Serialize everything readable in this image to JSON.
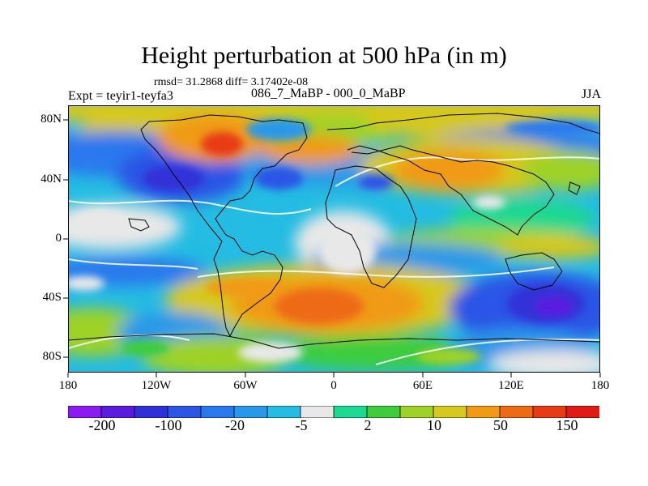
{
  "title": "Height perturbation at 500 hPa (in m)",
  "subtitle_stats": "rmsd= 31.2868 diff= 3.17402e-08",
  "left_label": "Expt = teyir1-teyfa3",
  "center_label": "086_7_MaBP - 000_0_MaBP",
  "right_label": "JJA",
  "map": {
    "variable": "Height perturbation at 500 hPa",
    "units": "m",
    "x_ticks": [
      "180",
      "120W",
      "60W",
      "0",
      "60E",
      "120E",
      "180"
    ],
    "y_ticks": [
      "80N",
      "40N",
      "0",
      "40S",
      "80S"
    ],
    "lon_range": [
      -180,
      180
    ],
    "lat_range": [
      -90,
      90
    ]
  },
  "colorbar": {
    "colors": [
      "#8a1cf0",
      "#5a1ae0",
      "#3030d8",
      "#2c55e6",
      "#2a78ee",
      "#2a98e8",
      "#24bce2",
      "#e8e8e8",
      "#1cd890",
      "#3ccc3c",
      "#9ed228",
      "#d6c81e",
      "#f09a16",
      "#ee6a14",
      "#e83a14",
      "#e01a14"
    ],
    "labels": [
      "-200",
      "-100",
      "-20",
      "-5",
      "2",
      "10",
      "50",
      "150"
    ]
  }
}
